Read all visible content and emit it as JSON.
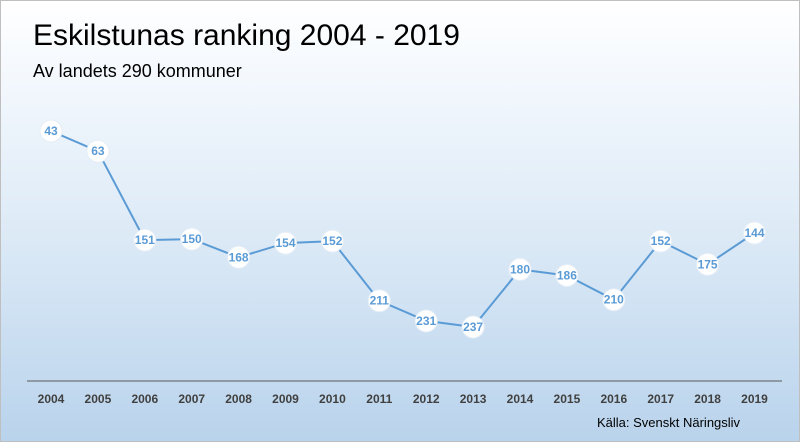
{
  "chart_data": {
    "type": "line",
    "title": "Eskilstunas ranking 2004 - 2019",
    "subtitle": "Av landets 290 kommuner",
    "source": "Källa: Svenskt Näringsliv",
    "categories": [
      "2004",
      "2005",
      "2006",
      "2007",
      "2008",
      "2009",
      "2010",
      "2011",
      "2012",
      "2013",
      "2014",
      "2015",
      "2016",
      "2017",
      "2018",
      "2019"
    ],
    "series": [
      {
        "values": [
          43,
          63,
          151,
          150,
          168,
          154,
          152,
          211,
          231,
          237,
          180,
          186,
          210,
          152,
          175,
          144
        ]
      }
    ],
    "xlabel": "",
    "ylabel": "",
    "grid": false,
    "legend": "none",
    "colors": {
      "line": "#5b9bd5",
      "marker_fill": "#ffffff",
      "label_text": "#5b9bd5",
      "axis": "#595959"
    }
  }
}
